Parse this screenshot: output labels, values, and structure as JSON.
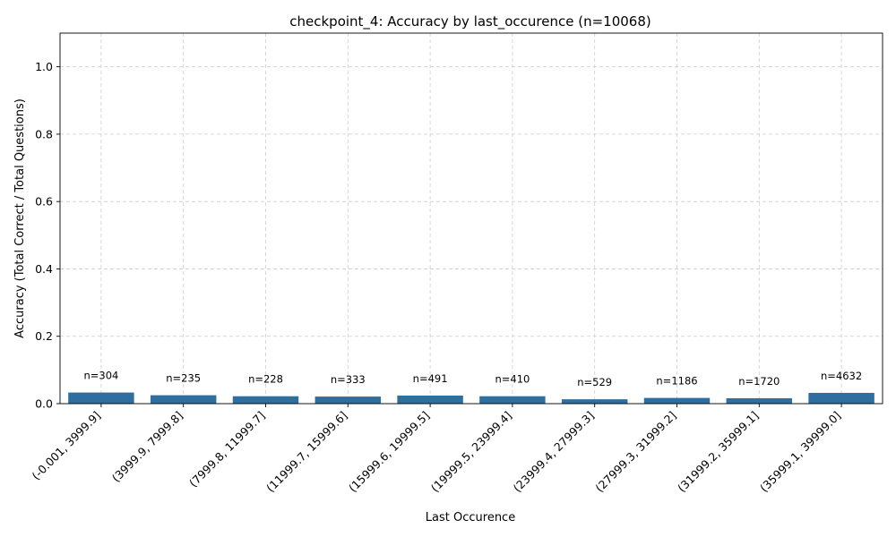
{
  "chart_data": {
    "type": "bar",
    "title": "checkpoint_4: Accuracy by last_occurence (n=10068)",
    "xlabel": "Last Occurence",
    "ylabel": "Accuracy (Total Correct / Total Questions)",
    "ylim": [
      0,
      1.1
    ],
    "yticks": [
      "0.0",
      "0.2",
      "0.4",
      "0.6",
      "0.8",
      "1.0"
    ],
    "grid": true,
    "bar_color": "#2f6f9f",
    "categories": [
      "(-0.001, 3999.9]",
      "(3999.9, 7999.8]",
      "(7999.8, 11999.7]",
      "(11999.7, 15999.6]",
      "(15999.6, 19999.5]",
      "(19999.5, 23999.4]",
      "(23999.4, 27999.3]",
      "(27999.3, 31999.2]",
      "(31999.2, 35999.1]",
      "(35999.1, 39999.0]"
    ],
    "values": [
      0.033,
      0.025,
      0.022,
      0.021,
      0.024,
      0.022,
      0.013,
      0.017,
      0.016,
      0.032
    ],
    "annotations": [
      "n=304",
      "n=235",
      "n=228",
      "n=333",
      "n=491",
      "n=410",
      "n=529",
      "n=1186",
      "n=1720",
      "n=4632"
    ]
  }
}
